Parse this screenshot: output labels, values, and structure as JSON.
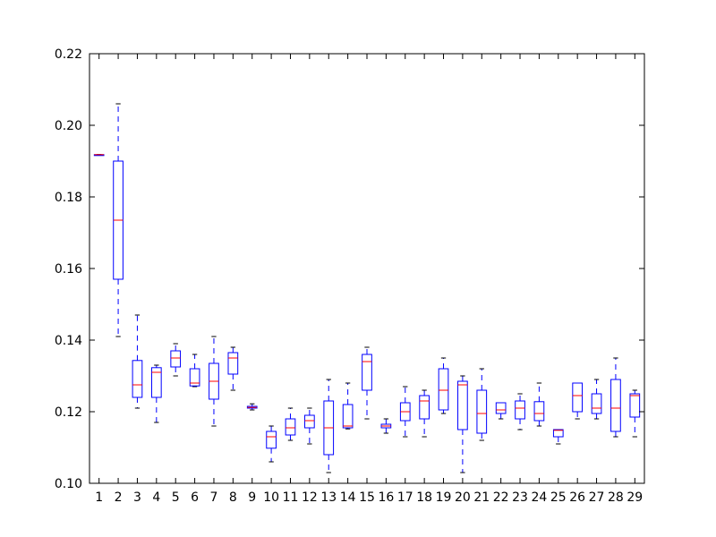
{
  "chart_data": {
    "type": "box",
    "title": "",
    "xlabel": "",
    "ylabel": "",
    "ylim": [
      0.1,
      0.22
    ],
    "yticks": [
      "0.10",
      "0.12",
      "0.14",
      "0.16",
      "0.18",
      "0.20",
      "0.22"
    ],
    "categories": [
      "1",
      "2",
      "3",
      "4",
      "5",
      "6",
      "7",
      "8",
      "9",
      "10",
      "11",
      "12",
      "13",
      "14",
      "15",
      "16",
      "17",
      "18",
      "19",
      "20",
      "21",
      "22",
      "23",
      "24",
      "25",
      "26",
      "27",
      "28",
      "29"
    ],
    "boxes": [
      {
        "category": "1",
        "whisker_low": 0.1918,
        "q1": 0.1918,
        "median": 0.1918,
        "q3": 0.1918,
        "whisker_high": 0.1918
      },
      {
        "category": "2",
        "whisker_low": 0.141,
        "q1": 0.157,
        "median": 0.1735,
        "q3": 0.19,
        "whisker_high": 0.206
      },
      {
        "category": "3",
        "whisker_low": 0.121,
        "q1": 0.124,
        "median": 0.1275,
        "q3": 0.1343,
        "whisker_high": 0.147
      },
      {
        "category": "4",
        "whisker_low": 0.117,
        "q1": 0.124,
        "median": 0.131,
        "q3": 0.1323,
        "whisker_high": 0.133
      },
      {
        "category": "5",
        "whisker_low": 0.13,
        "q1": 0.1325,
        "median": 0.135,
        "q3": 0.137,
        "whisker_high": 0.139
      },
      {
        "category": "6",
        "whisker_low": 0.127,
        "q1": 0.1272,
        "median": 0.128,
        "q3": 0.132,
        "whisker_high": 0.136
      },
      {
        "category": "7",
        "whisker_low": 0.116,
        "q1": 0.1235,
        "median": 0.1285,
        "q3": 0.1335,
        "whisker_high": 0.141
      },
      {
        "category": "8",
        "whisker_low": 0.126,
        "q1": 0.1305,
        "median": 0.135,
        "q3": 0.1365,
        "whisker_high": 0.138
      },
      {
        "category": "9",
        "whisker_low": 0.1205,
        "q1": 0.121,
        "median": 0.1212,
        "q3": 0.1215,
        "whisker_high": 0.1222
      },
      {
        "category": "10",
        "whisker_low": 0.106,
        "q1": 0.1098,
        "median": 0.113,
        "q3": 0.1145,
        "whisker_high": 0.116
      },
      {
        "category": "11",
        "whisker_low": 0.112,
        "q1": 0.1135,
        "median": 0.1155,
        "q3": 0.118,
        "whisker_high": 0.121
      },
      {
        "category": "12",
        "whisker_low": 0.111,
        "q1": 0.1155,
        "median": 0.1175,
        "q3": 0.119,
        "whisker_high": 0.121
      },
      {
        "category": "13",
        "whisker_low": 0.103,
        "q1": 0.108,
        "median": 0.1155,
        "q3": 0.123,
        "whisker_high": 0.129
      },
      {
        "category": "14",
        "whisker_low": 0.1152,
        "q1": 0.1155,
        "median": 0.116,
        "q3": 0.122,
        "whisker_high": 0.128
      },
      {
        "category": "15",
        "whisker_low": 0.118,
        "q1": 0.126,
        "median": 0.134,
        "q3": 0.136,
        "whisker_high": 0.138
      },
      {
        "category": "16",
        "whisker_low": 0.114,
        "q1": 0.1155,
        "median": 0.116,
        "q3": 0.1165,
        "whisker_high": 0.118
      },
      {
        "category": "17",
        "whisker_low": 0.113,
        "q1": 0.1175,
        "median": 0.12,
        "q3": 0.1225,
        "whisker_high": 0.127
      },
      {
        "category": "18",
        "whisker_low": 0.113,
        "q1": 0.118,
        "median": 0.123,
        "q3": 0.1245,
        "whisker_high": 0.126
      },
      {
        "category": "19",
        "whisker_low": 0.1195,
        "q1": 0.1205,
        "median": 0.126,
        "q3": 0.132,
        "whisker_high": 0.135
      },
      {
        "category": "20",
        "whisker_low": 0.103,
        "q1": 0.115,
        "median": 0.1275,
        "q3": 0.1285,
        "whisker_high": 0.13
      },
      {
        "category": "21",
        "whisker_low": 0.112,
        "q1": 0.114,
        "median": 0.1195,
        "q3": 0.126,
        "whisker_high": 0.132
      },
      {
        "category": "22",
        "whisker_low": 0.118,
        "q1": 0.1195,
        "median": 0.1205,
        "q3": 0.1225,
        "whisker_high": 0.1225
      },
      {
        "category": "23",
        "whisker_low": 0.115,
        "q1": 0.118,
        "median": 0.121,
        "q3": 0.123,
        "whisker_high": 0.125
      },
      {
        "category": "24",
        "whisker_low": 0.116,
        "q1": 0.1175,
        "median": 0.1195,
        "q3": 0.1228,
        "whisker_high": 0.128
      },
      {
        "category": "25",
        "whisker_low": 0.111,
        "q1": 0.113,
        "median": 0.1148,
        "q3": 0.115,
        "whisker_high": 0.115
      },
      {
        "category": "26",
        "whisker_low": 0.118,
        "q1": 0.12,
        "median": 0.1245,
        "q3": 0.128,
        "whisker_high": 0.128
      },
      {
        "category": "27",
        "whisker_low": 0.118,
        "q1": 0.1195,
        "median": 0.121,
        "q3": 0.125,
        "whisker_high": 0.129
      },
      {
        "category": "28",
        "whisker_low": 0.113,
        "q1": 0.1145,
        "median": 0.121,
        "q3": 0.129,
        "whisker_high": 0.135
      },
      {
        "category": "29",
        "whisker_low": 0.113,
        "q1": 0.1185,
        "median": 0.1245,
        "q3": 0.125,
        "whisker_high": 0.126
      }
    ],
    "grid": false,
    "legend": "none"
  },
  "colors": {
    "box": "#0000ff",
    "median": "#ff0000",
    "cap": "#000000",
    "axis": "#000000",
    "background": "#ffffff"
  }
}
